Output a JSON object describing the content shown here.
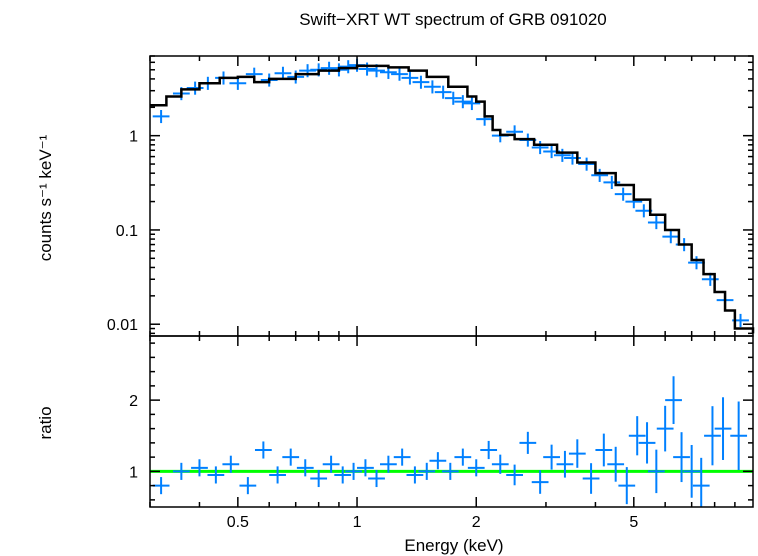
{
  "chart_data": {
    "type": "scatter",
    "title": "Swift−XRT WT spectrum of GRB 091020",
    "xlabel": "Energy (keV)",
    "x_scale": "log",
    "xlim": [
      0.3,
      10
    ],
    "x_ticks": [
      0.5,
      1,
      2,
      5
    ],
    "x_tick_labels": [
      "0.5",
      "1",
      "2",
      "5"
    ],
    "panels": [
      {
        "name": "spectrum",
        "ylabel": "counts s⁻¹ keV⁻¹",
        "y_scale": "log",
        "ylim": [
          0.0075,
          7
        ],
        "y_ticks": [
          1,
          0.1,
          0.01
        ],
        "y_tick_labels": [
          "1",
          "0.1",
          "0.01"
        ],
        "series": [
          {
            "kind": "data",
            "color": "#0080ff",
            "x": [
              0.32,
              0.36,
              0.39,
              0.42,
              0.46,
              0.5,
              0.55,
              0.6,
              0.65,
              0.7,
              0.75,
              0.8,
              0.85,
              0.9,
              0.95,
              1.0,
              1.06,
              1.12,
              1.2,
              1.28,
              1.36,
              1.45,
              1.55,
              1.65,
              1.75,
              1.85,
              1.95,
              2.1,
              2.3,
              2.5,
              2.7,
              2.9,
              3.1,
              3.3,
              3.5,
              3.8,
              4.1,
              4.4,
              4.7,
              5.0,
              5.3,
              5.7,
              6.2,
              6.7,
              7.2,
              7.8,
              8.5,
              9.3
            ],
            "y": [
              1.6,
              2.8,
              3.2,
              3.6,
              4.1,
              3.6,
              4.5,
              3.9,
              4.6,
              4.2,
              4.9,
              5.0,
              5.2,
              5.0,
              5.4,
              5.6,
              5.1,
              4.9,
              4.7,
              4.5,
              4.1,
              3.7,
              3.3,
              2.9,
              2.5,
              2.3,
              2.2,
              1.5,
              1.0,
              1.1,
              0.9,
              0.75,
              0.68,
              0.62,
              0.58,
              0.5,
              0.38,
              0.32,
              0.24,
              0.2,
              0.16,
              0.12,
              0.085,
              0.07,
              0.045,
              0.03,
              0.018,
              0.011
            ]
          },
          {
            "kind": "model",
            "color": "#000000",
            "x": [
              0.3,
              0.33,
              0.36,
              0.4,
              0.45,
              0.5,
              0.55,
              0.6,
              0.7,
              0.8,
              0.9,
              1.0,
              1.1,
              1.2,
              1.35,
              1.5,
              1.7,
              1.9,
              2.0,
              2.1,
              2.2,
              2.3,
              2.5,
              2.8,
              3.2,
              3.6,
              4.0,
              4.5,
              5.0,
              5.5,
              6.0,
              6.5,
              7.0,
              7.5,
              8.0,
              8.5,
              9.0,
              10.0
            ],
            "y": [
              2.1,
              2.6,
              3.1,
              3.6,
              4.1,
              4.2,
              3.7,
              4.0,
              4.5,
              4.9,
              5.2,
              5.5,
              5.5,
              5.3,
              4.9,
              4.2,
              3.3,
              2.6,
              2.3,
              1.6,
              1.15,
              1.02,
              0.92,
              0.8,
              0.66,
              0.52,
              0.4,
              0.3,
              0.21,
              0.145,
              0.1,
              0.07,
              0.048,
              0.034,
              0.022,
              0.014,
              0.009,
              0.008
            ]
          }
        ]
      },
      {
        "name": "ratio",
        "ylabel": "ratio",
        "y_scale": "linear",
        "ylim": [
          0.5,
          2.9
        ],
        "y_ticks": [
          1,
          2
        ],
        "y_tick_labels": [
          "1",
          "2"
        ],
        "reference_line": {
          "y": 1,
          "color": "#00ff00"
        },
        "series": [
          {
            "kind": "data",
            "color": "#0080ff",
            "x": [
              0.32,
              0.36,
              0.4,
              0.44,
              0.48,
              0.53,
              0.58,
              0.63,
              0.68,
              0.74,
              0.8,
              0.86,
              0.92,
              0.98,
              1.05,
              1.12,
              1.2,
              1.3,
              1.4,
              1.5,
              1.6,
              1.72,
              1.85,
              2.0,
              2.15,
              2.3,
              2.5,
              2.7,
              2.9,
              3.1,
              3.35,
              3.6,
              3.9,
              4.2,
              4.5,
              4.8,
              5.1,
              5.4,
              5.7,
              6.0,
              6.3,
              6.6,
              7.0,
              7.4,
              7.9,
              8.4,
              9.2
            ],
            "y": [
              0.8,
              1.0,
              1.05,
              0.95,
              1.1,
              0.8,
              1.3,
              0.95,
              1.2,
              1.05,
              0.9,
              1.1,
              0.95,
              1.0,
              1.05,
              0.9,
              1.1,
              1.2,
              0.95,
              1.0,
              1.15,
              1.0,
              1.2,
              1.05,
              1.3,
              1.1,
              0.95,
              1.4,
              0.85,
              1.2,
              1.1,
              1.25,
              0.9,
              1.3,
              1.1,
              0.8,
              1.5,
              1.4,
              1.0,
              1.6,
              2.0,
              1.2,
              1.0,
              0.8,
              1.5,
              1.6,
              1.5
            ]
          }
        ]
      }
    ]
  }
}
